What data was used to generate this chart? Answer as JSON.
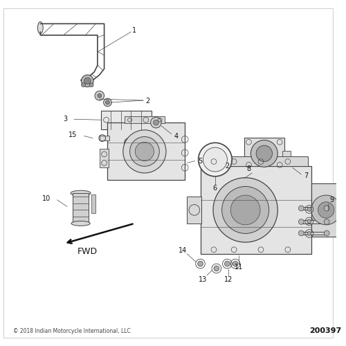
{
  "bg_color": "#ffffff",
  "border_color": "#cccccc",
  "line_color": "#444444",
  "text_color": "#111111",
  "copyright": "© 2018 Indian Motorcycle International, LLC",
  "diagram_number": "200397",
  "fwd_label": "FWD",
  "font_size_labels": 7,
  "font_size_copyright": 5.5,
  "font_size_diag": 8,
  "font_size_fwd": 9
}
